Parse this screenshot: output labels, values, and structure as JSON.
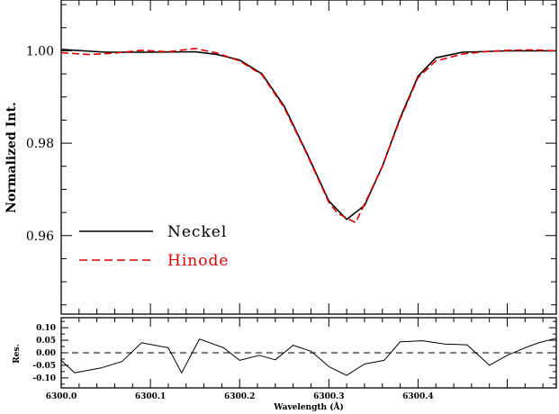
{
  "chart_data": [
    {
      "type": "line",
      "ylabel": "Normalized Int.",
      "ylim": [
        0.943,
        1.011
      ],
      "xlim": [
        6300.0,
        6300.555
      ],
      "yticks": [
        "0.96",
        "0.98",
        "1.00"
      ],
      "ytick_values": [
        0.96,
        0.98,
        1.0
      ],
      "legend_position": "bottom-left",
      "series": [
        {
          "name": "Neckel",
          "color": "#000000",
          "style": "solid",
          "x": [
            6300.0,
            6300.05,
            6300.1,
            6300.15,
            6300.175,
            6300.2,
            6300.225,
            6300.25,
            6300.275,
            6300.3,
            6300.32,
            6300.34,
            6300.36,
            6300.38,
            6300.4,
            6300.42,
            6300.45,
            6300.5,
            6300.555
          ],
          "y": [
            1.0003,
            0.9997,
            0.9997,
            0.9998,
            0.9992,
            0.998,
            0.995,
            0.988,
            0.978,
            0.9675,
            0.9635,
            0.9665,
            0.975,
            0.9855,
            0.9945,
            0.9985,
            0.9997,
            1.0,
            1.0
          ]
        },
        {
          "name": "Hinode",
          "color": "#dd0000",
          "style": "dashed",
          "x": [
            6300.0,
            6300.03,
            6300.06,
            6300.09,
            6300.12,
            6300.15,
            6300.175,
            6300.2,
            6300.225,
            6300.25,
            6300.275,
            6300.3,
            6300.31,
            6300.32,
            6300.33,
            6300.34,
            6300.36,
            6300.38,
            6300.4,
            6300.42,
            6300.45,
            6300.48,
            6300.5,
            6300.53,
            6300.555
          ],
          "y": [
            0.9996,
            0.9992,
            0.9995,
            1.0001,
            0.9998,
            1.0005,
            0.9995,
            0.9978,
            0.9948,
            0.9877,
            0.9778,
            0.9672,
            0.9648,
            0.9638,
            0.9628,
            0.9668,
            0.975,
            0.9852,
            0.9942,
            0.9978,
            0.9993,
            0.9999,
            1.0001,
            1.0002,
            1.0
          ]
        }
      ]
    },
    {
      "type": "line",
      "xlabel": "Wavelength (Å)",
      "ylabel": "Res.",
      "xlim": [
        6300.0,
        6300.555
      ],
      "ylim": [
        -0.14,
        0.14
      ],
      "xticks": [
        "6300.0",
        "6300.1",
        "6300.2",
        "6300.3",
        "6300.4"
      ],
      "xtick_values": [
        6300.0,
        6300.1,
        6300.2,
        6300.3,
        6300.4
      ],
      "yticks": [
        "0.10",
        "0.05",
        "0.00",
        "-0.05",
        "-0.10"
      ],
      "ytick_values": [
        0.1,
        0.05,
        0.0,
        -0.05,
        -0.1
      ],
      "reference_line": 0.0,
      "series": [
        {
          "color": "#000000",
          "style": "solid",
          "x": [
            6300.0,
            6300.015,
            6300.045,
            6300.068,
            6300.09,
            6300.12,
            6300.135,
            6300.155,
            6300.182,
            6300.2,
            6300.222,
            6300.24,
            6300.26,
            6300.28,
            6300.3,
            6300.32,
            6300.34,
            6300.362,
            6300.38,
            6300.405,
            6300.43,
            6300.455,
            6300.48,
            6300.5,
            6300.52,
            6300.535,
            6300.555
          ],
          "y": [
            -0.03,
            -0.08,
            -0.06,
            -0.035,
            0.04,
            0.02,
            -0.08,
            0.055,
            0.02,
            -0.03,
            -0.01,
            -0.028,
            0.03,
            0.006,
            -0.055,
            -0.09,
            -0.045,
            -0.03,
            0.044,
            0.048,
            0.035,
            0.032,
            -0.05,
            -0.01,
            0.02,
            0.04,
            0.058
          ]
        }
      ]
    }
  ]
}
